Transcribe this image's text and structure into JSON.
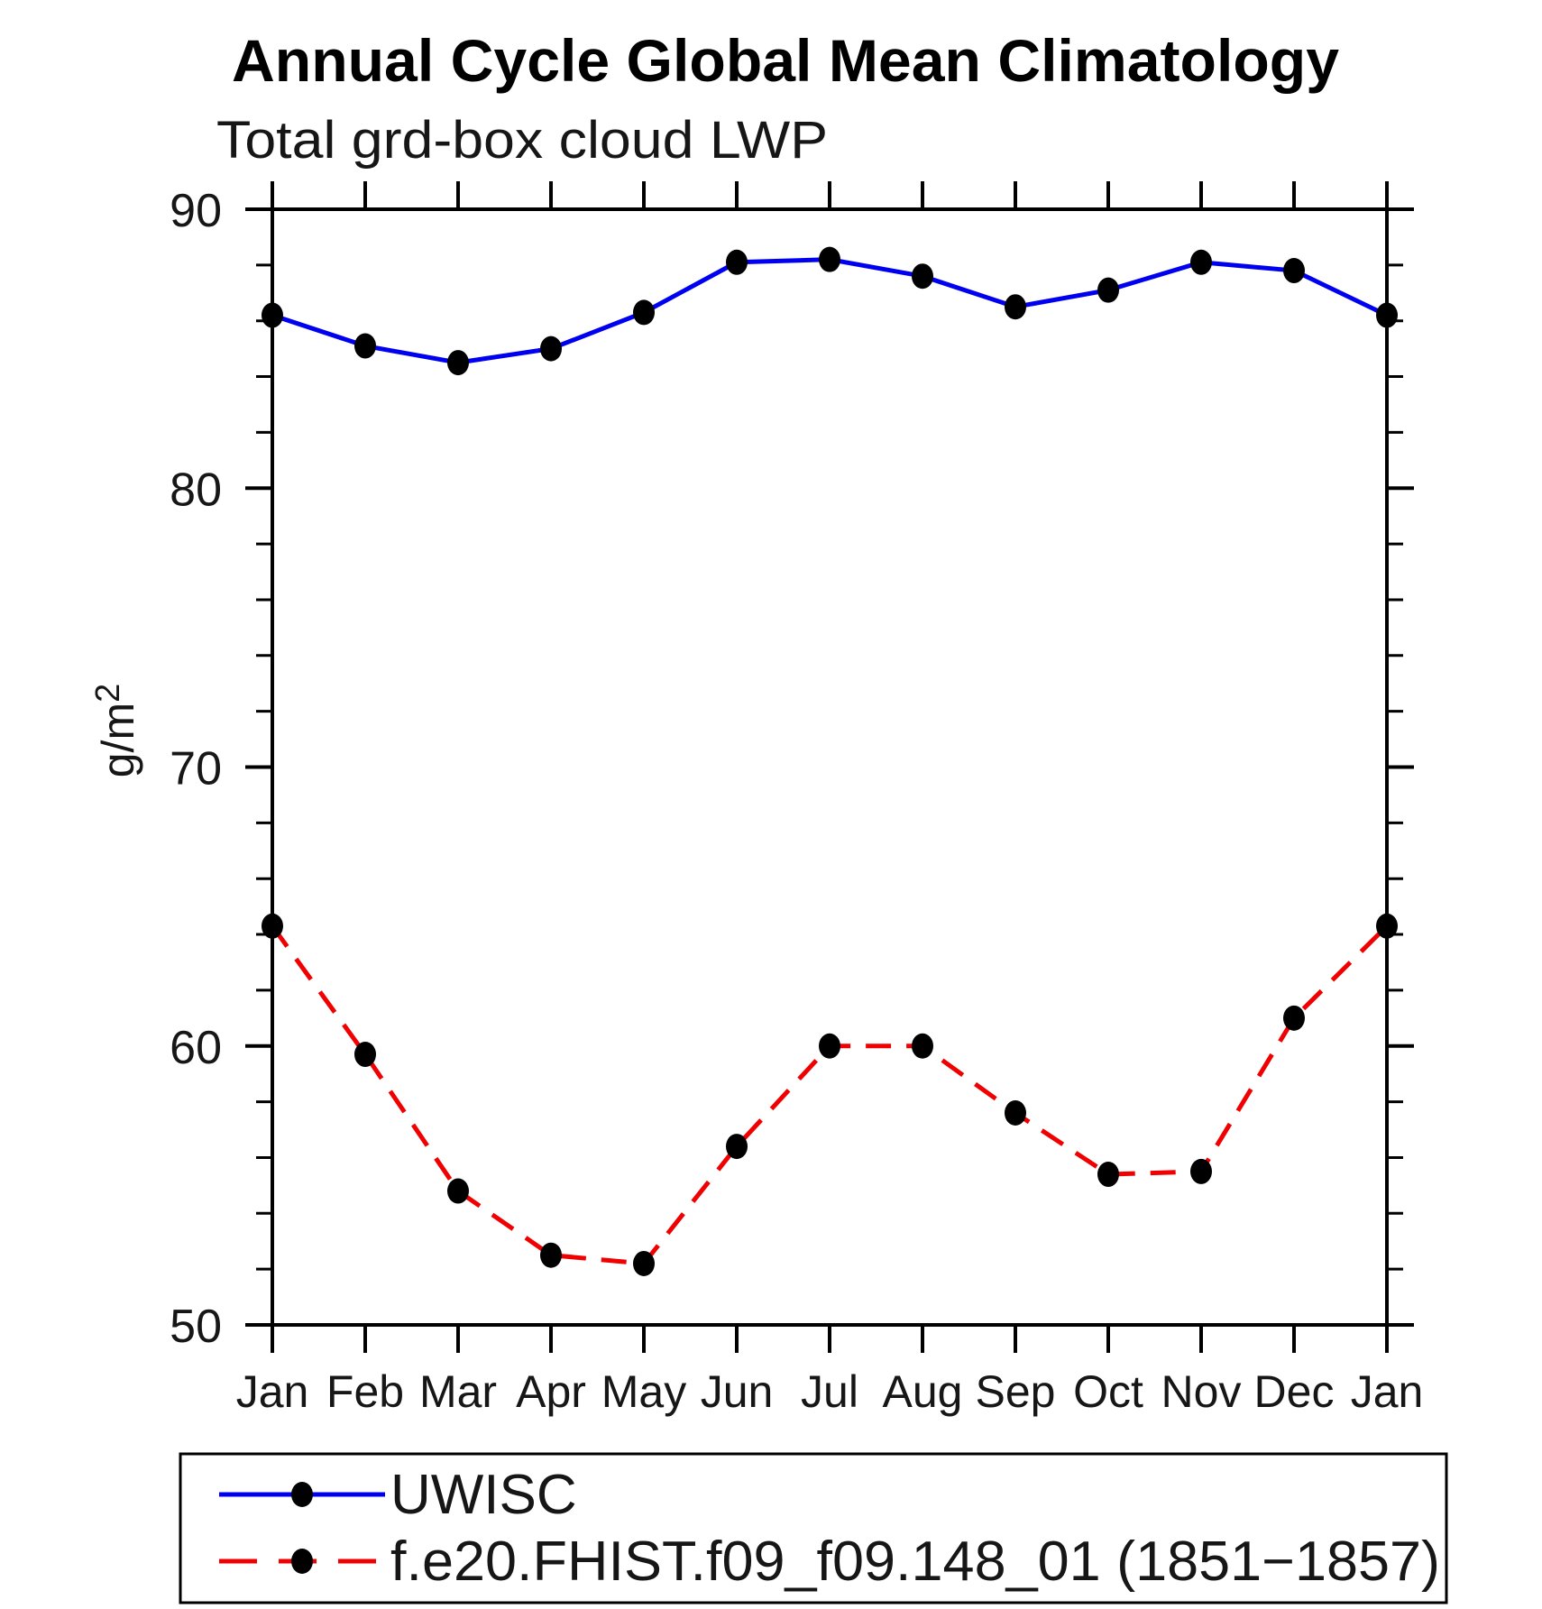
{
  "title": "Annual Cycle Global Mean Climatology",
  "subtitle": "Total grd-box cloud LWP",
  "chart_data": {
    "type": "line",
    "title": "Annual Cycle Global Mean Climatology",
    "subtitle": "Total grd-box cloud LWP",
    "categories": [
      "Jan",
      "Feb",
      "Mar",
      "Apr",
      "May",
      "Jun",
      "Jul",
      "Aug",
      "Sep",
      "Oct",
      "Nov",
      "Dec",
      "Jan"
    ],
    "xlabel": "",
    "ylabel": "g/m²",
    "ylim": [
      50,
      90
    ],
    "y_major_ticks": [
      50,
      60,
      70,
      80,
      90
    ],
    "y_minor_step": 2,
    "grid": false,
    "legend_position": "bottom-box",
    "marker": "filled-circle",
    "marker_color": "#000000",
    "frame_color": "#000000",
    "series": [
      {
        "name": "UWISC",
        "color": "#0000f0",
        "line_style": "solid",
        "values": [
          86.2,
          85.1,
          84.5,
          85.0,
          86.3,
          88.1,
          88.2,
          87.6,
          86.5,
          87.1,
          88.1,
          87.8,
          86.2
        ]
      },
      {
        "name": "f.e20.FHIST.f09_f09.148_01 (1851−1857)",
        "color": "#f00000",
        "line_style": "dashed",
        "values": [
          64.3,
          59.7,
          54.8,
          52.5,
          52.2,
          56.4,
          60.0,
          60.0,
          57.6,
          55.4,
          55.5,
          61.0,
          64.3
        ]
      }
    ]
  }
}
